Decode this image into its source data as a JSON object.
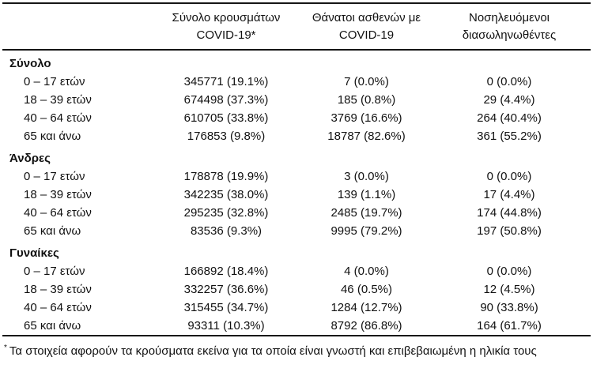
{
  "header": {
    "columns": [
      {
        "line1": "Σύνολο κρουσμάτων",
        "line2": "COVID-19*"
      },
      {
        "line1": "Θάνατοι ασθενών με",
        "line2": "COVID-19"
      },
      {
        "line1": "Νοσηλευόμενοι",
        "line2": "διασωληνωθέντες"
      }
    ]
  },
  "sections": [
    {
      "title": "Σύνολο",
      "rows": [
        {
          "label": "0 – 17 ετών",
          "cases": "345771 (19.1%)",
          "deaths": "7 (0.0%)",
          "intubated": "0 (0.0%)"
        },
        {
          "label": "18 – 39 ετών",
          "cases": "674498 (37.3%)",
          "deaths": "185 (0.8%)",
          "intubated": "29 (4.4%)"
        },
        {
          "label": "40 – 64 ετών",
          "cases": "610705 (33.8%)",
          "deaths": "3769 (16.6%)",
          "intubated": "264 (40.4%)"
        },
        {
          "label": "65 και άνω",
          "cases": "176853 (9.8%)",
          "deaths": "18787 (82.6%)",
          "intubated": "361 (55.2%)"
        }
      ]
    },
    {
      "title": "Άνδρες",
      "rows": [
        {
          "label": "0 – 17 ετών",
          "cases": "178878 (19.9%)",
          "deaths": "3 (0.0%)",
          "intubated": "0 (0.0%)"
        },
        {
          "label": "18 – 39 ετών",
          "cases": "342235 (38.0%)",
          "deaths": "139 (1.1%)",
          "intubated": "17 (4.4%)"
        },
        {
          "label": "40 – 64 ετών",
          "cases": "295235 (32.8%)",
          "deaths": "2485 (19.7%)",
          "intubated": "174 (44.8%)"
        },
        {
          "label": "65 και άνω",
          "cases": "83536 (9.3%)",
          "deaths": "9995 (79.2%)",
          "intubated": "197 (50.8%)"
        }
      ]
    },
    {
      "title": "Γυναίκες",
      "rows": [
        {
          "label": "0 – 17 ετών",
          "cases": "166892 (18.4%)",
          "deaths": "4 (0.0%)",
          "intubated": "0 (0.0%)"
        },
        {
          "label": "18 – 39 ετών",
          "cases": "332257 (36.6%)",
          "deaths": "46 (0.5%)",
          "intubated": "12 (4.5%)"
        },
        {
          "label": "40 – 64 ετών",
          "cases": "315455 (34.7%)",
          "deaths": "1284 (12.7%)",
          "intubated": "90 (33.8%)"
        },
        {
          "label": "65 και άνω",
          "cases": "93311 (10.3%)",
          "deaths": "8792 (86.8%)",
          "intubated": "164 (61.7%)"
        }
      ]
    }
  ],
  "footnote": {
    "marker": "*",
    "text": "Τα στοιχεία αφορούν τα κρούσματα εκείνα για τα οποία είναι γνωστή και επιβεβαιωμένη η ηλικία τους"
  }
}
